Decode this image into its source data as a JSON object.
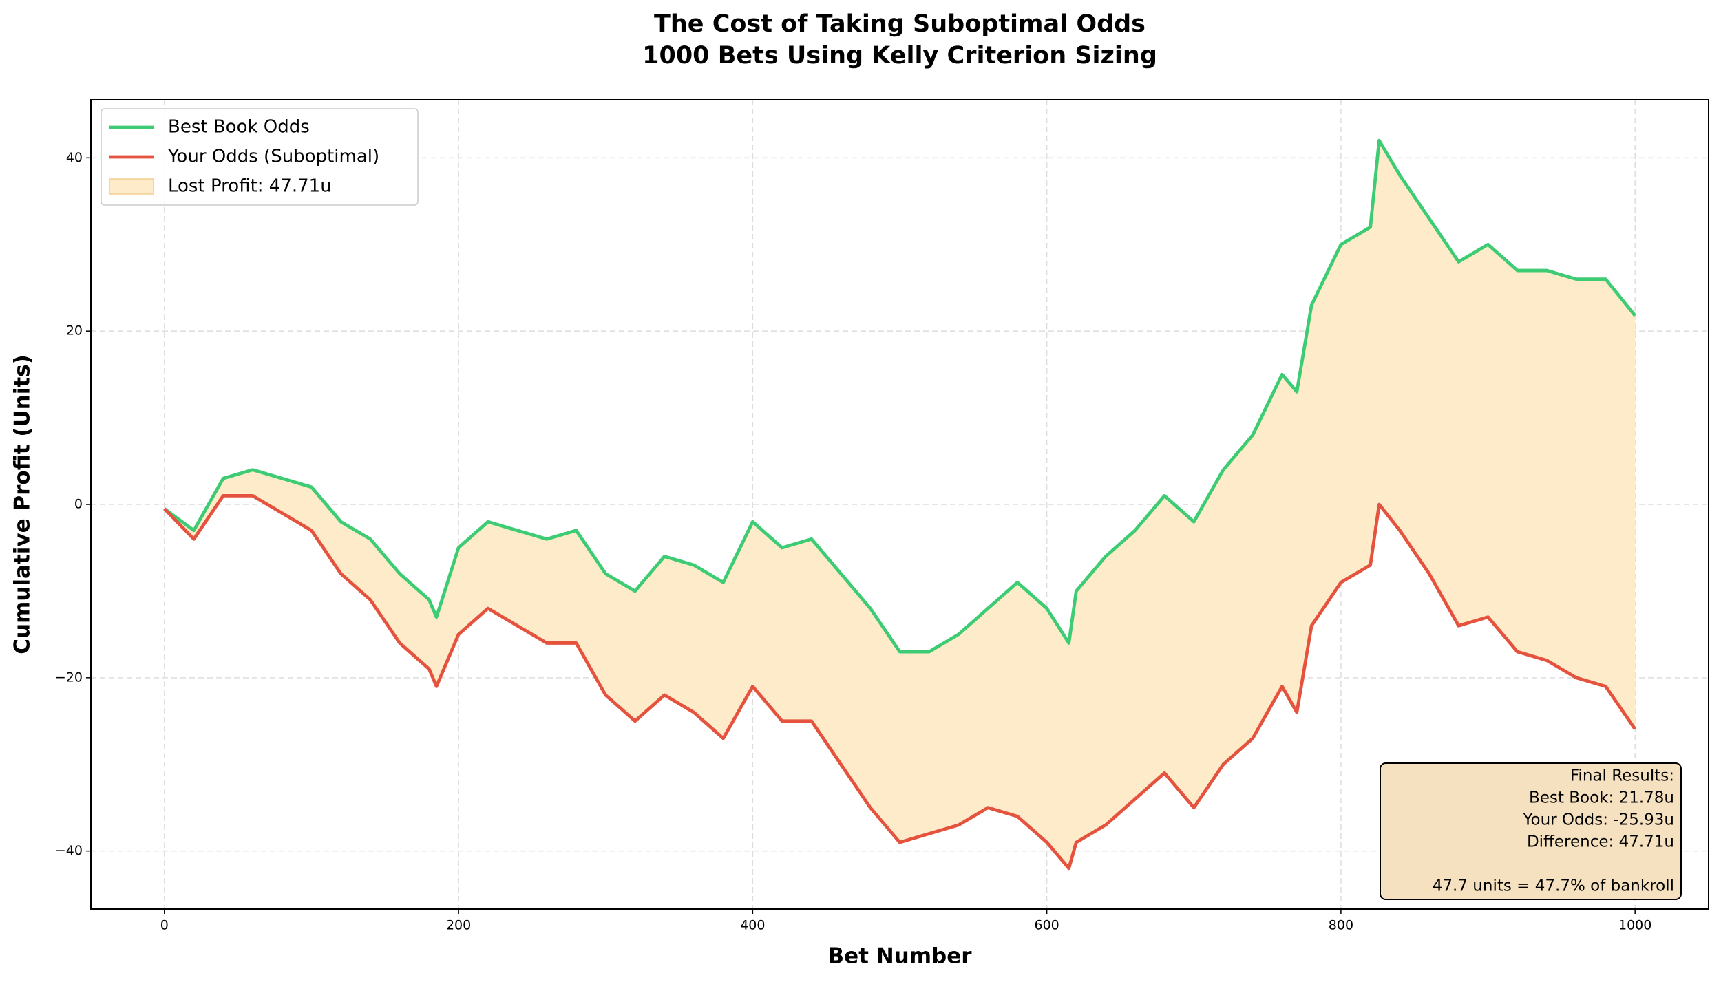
{
  "chart_data": {
    "type": "line",
    "title": "The Cost of Taking Suboptimal Odds",
    "subtitle": "1000 Bets Using Kelly Criterion Sizing",
    "x_label": "Bet Number",
    "y_label": "Cumulative Profit (Units)",
    "x": [
      0,
      20,
      40,
      60,
      80,
      100,
      120,
      140,
      160,
      180,
      185,
      200,
      220,
      240,
      260,
      280,
      300,
      320,
      340,
      360,
      380,
      400,
      420,
      440,
      460,
      480,
      500,
      520,
      540,
      560,
      580,
      600,
      615,
      620,
      640,
      660,
      680,
      700,
      720,
      740,
      760,
      770,
      780,
      800,
      820,
      826,
      840,
      860,
      880,
      900,
      920,
      940,
      960,
      980,
      1000
    ],
    "series": [
      {
        "name": "Best Book Odds",
        "color": "#3dcc74",
        "values": [
          -0.5,
          -3,
          3,
          4,
          3,
          2,
          -2,
          -4,
          -8,
          -11,
          -13,
          -5,
          -2,
          -3,
          -4,
          -3,
          -8,
          -10,
          -6,
          -7,
          -9,
          -2,
          -5,
          -4,
          -8,
          -12,
          -17,
          -17,
          -15,
          -12,
          -9,
          -12,
          -16,
          -10,
          -6,
          -3,
          1,
          -2,
          4,
          8,
          15,
          13,
          23,
          30,
          32,
          42,
          38,
          33,
          28,
          30,
          27,
          27,
          26,
          26,
          21.78
        ]
      },
      {
        "name": "Your Odds (Suboptimal)",
        "color": "#e5533f",
        "values": [
          -0.5,
          -4,
          1,
          1,
          -1,
          -3,
          -8,
          -11,
          -16,
          -19,
          -21,
          -15,
          -12,
          -14,
          -16,
          -16,
          -22,
          -25,
          -22,
          -24,
          -27,
          -21,
          -25,
          -25,
          -30,
          -35,
          -39,
          -38,
          -37,
          -35,
          -36,
          -39,
          -42,
          -39,
          -37,
          -34,
          -31,
          -35,
          -30,
          -27,
          -21,
          -24,
          -14,
          -9,
          -7,
          0,
          -3,
          -8,
          -14,
          -13,
          -17,
          -18,
          -20,
          -21,
          -25.93
        ]
      }
    ],
    "fill_label": "Lost Profit: 47.71u",
    "fill_color": "#fdebc9",
    "xlim": [
      -50,
      1050
    ],
    "ylim": [
      -46.7,
      46.7
    ],
    "xticks": [
      0,
      200,
      400,
      600,
      800,
      1000
    ],
    "yticks": [
      {
        "value": -40,
        "label": "−40"
      },
      {
        "value": -20,
        "label": "−20"
      },
      0,
      20,
      40
    ],
    "grid": true,
    "legend": "upper left",
    "annotation": [
      "Final Results:",
      "Best Book: 21.78u",
      "Your Odds: -25.93u",
      "Difference: 47.71u",
      "47.7 units = 47.7% of bankroll"
    ]
  }
}
